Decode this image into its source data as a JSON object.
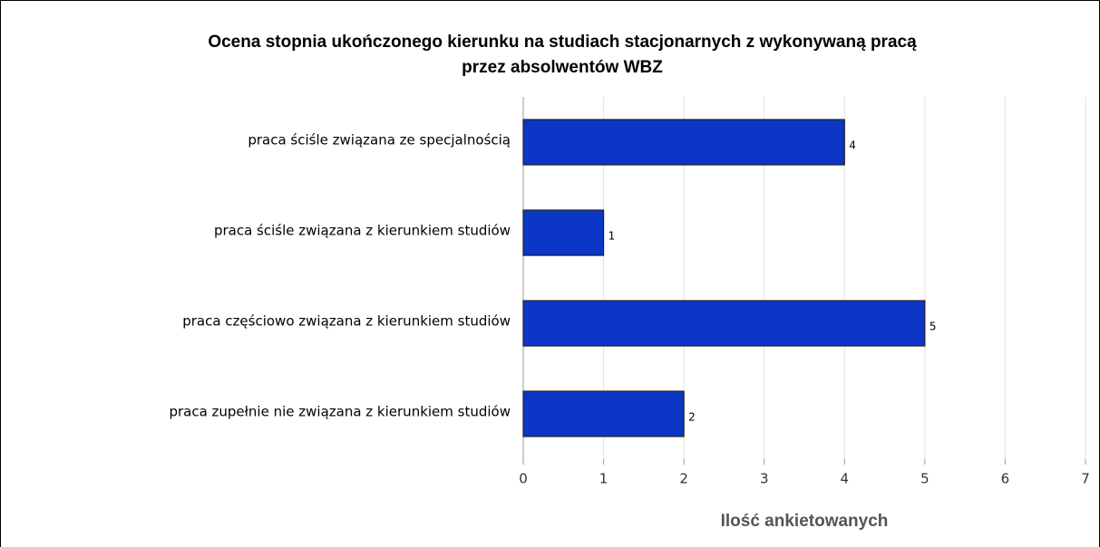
{
  "chart_data": {
    "type": "bar",
    "orientation": "horizontal",
    "title": [
      "Ocena stopnia ukończonego kierunku na studiach stacjonarnych z wykonywaną pracą",
      "przez absolwentów WBZ"
    ],
    "x_label": "Ilość ankietowanych",
    "categories": [
      "praca ściśle związana ze specjalnością",
      "praca ściśle związana z kierunkiem studiów",
      "praca częściowo związana z kierunkiem studiów",
      "praca zupełnie nie związana z kierunkiem studiów"
    ],
    "values": [
      4,
      1,
      5,
      2
    ],
    "color": "#0b36c6",
    "xlim": [
      0,
      7
    ],
    "xticks": [
      0,
      1,
      2,
      3,
      4,
      5,
      6,
      7
    ],
    "grid": true
  }
}
